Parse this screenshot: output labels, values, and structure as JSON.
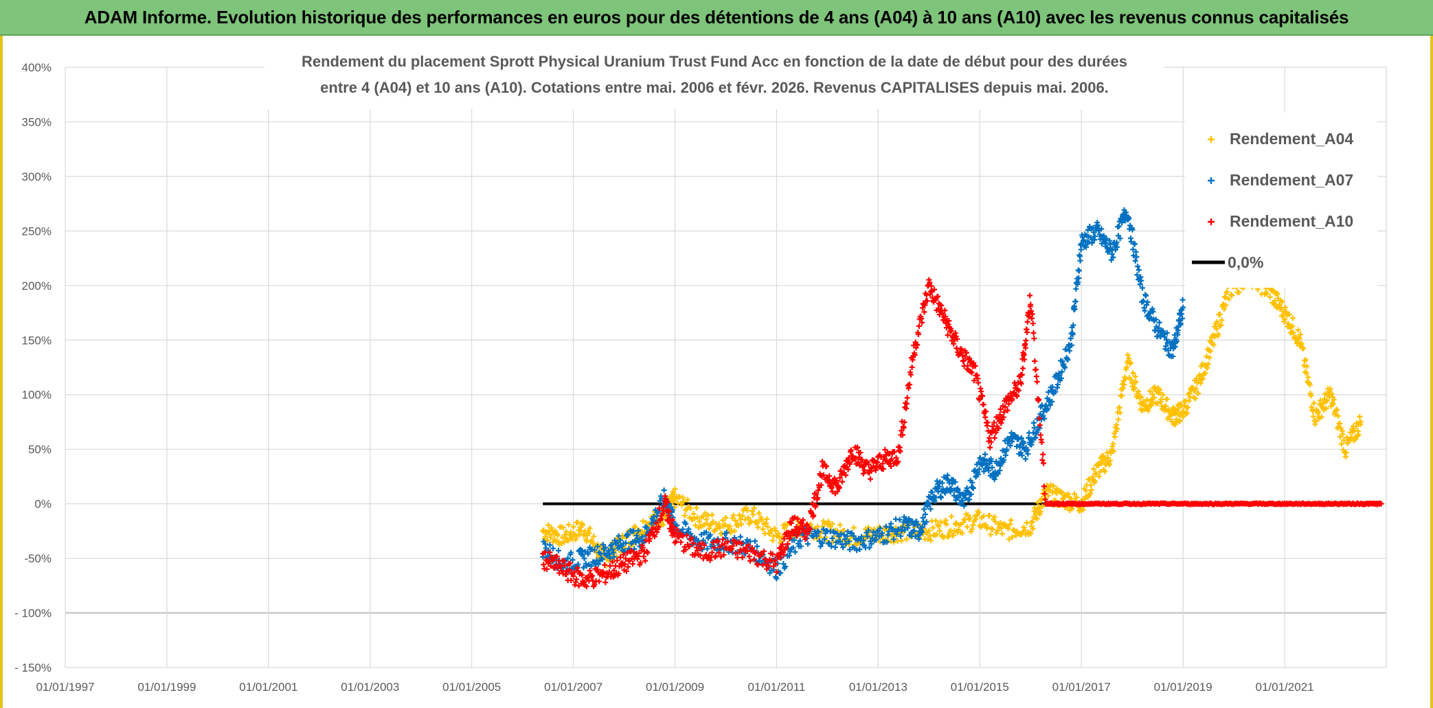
{
  "banner": {
    "title": "ADAM Informe. Evolution historique des performances en euros pour des détentions de 4 ans (A04) à 10 ans (A10) avec les revenus connus capitalisés"
  },
  "colors": {
    "banner_bg": "#7ec47a",
    "a04": "#ffc000",
    "a07": "#0070c0",
    "a10": "#ff0000",
    "zero_line": "#000000"
  },
  "chart_data": {
    "type": "scatter",
    "title_lines": [
      "Rendement du placement Sprott Physical Uranium Trust Fund Acc en fonction de la date de début pour des durées",
      "entre 4 (A04) et 10 ans (A10). Cotations entre mai. 2006 et févr. 2026. Revenus CAPITALISES depuis mai. 2006."
    ],
    "x_tick_labels": [
      "01/01/1997",
      "01/01/1999",
      "01/01/2001",
      "01/01/2003",
      "01/01/2005",
      "01/01/2007",
      "01/01/2009",
      "01/01/2011",
      "01/01/2013",
      "01/01/2015",
      "01/01/2017",
      "01/01/2019",
      "01/01/2021"
    ],
    "y_tick_labels": [
      "400%",
      "350%",
      "300%",
      "250%",
      "200%",
      "150%",
      "100%",
      "50%",
      "0%",
      "-50%",
      "- 100%",
      "- 150%"
    ],
    "xlim": [
      1997.0,
      2023.0
    ],
    "ylim": [
      -150,
      400
    ],
    "grid": true,
    "legend_position": "top-right",
    "series": [
      {
        "name": "Rendement_A04",
        "color": "#ffc000",
        "marker": "+",
        "x": [
          2006.4,
          2006.8,
          2007.2,
          2007.6,
          2008.0,
          2008.4,
          2008.8,
          2009.0,
          2009.5,
          2010.0,
          2010.5,
          2011.0,
          2011.5,
          2012.0,
          2012.5,
          2013.0,
          2013.5,
          2014.0,
          2014.5,
          2015.0,
          2015.5,
          2016.0,
          2016.3,
          2016.6,
          2017.0,
          2017.3,
          2017.6,
          2017.9,
          2018.2,
          2018.5,
          2018.8,
          2019.0,
          2019.3,
          2019.6,
          2019.9,
          2020.3,
          2020.7,
          2021.0,
          2021.3,
          2021.6,
          2021.9,
          2022.2,
          2022.5
        ],
        "y": [
          -25,
          -30,
          -22,
          -50,
          -35,
          -20,
          -10,
          5,
          -15,
          -20,
          -10,
          -30,
          -20,
          -25,
          -30,
          -28,
          -25,
          -25,
          -20,
          -15,
          -25,
          -20,
          10,
          5,
          0,
          30,
          45,
          130,
          90,
          100,
          80,
          85,
          110,
          150,
          195,
          210,
          195,
          175,
          150,
          80,
          100,
          50,
          75
        ]
      },
      {
        "name": "Rendement_A07",
        "color": "#0070c0",
        "marker": "+",
        "x": [
          2006.4,
          2006.8,
          2007.2,
          2007.6,
          2008.0,
          2008.4,
          2008.8,
          2009.0,
          2009.5,
          2010.0,
          2010.5,
          2011.0,
          2011.5,
          2012.0,
          2012.5,
          2013.0,
          2013.5,
          2013.8,
          2014.1,
          2014.4,
          2014.7,
          2015.0,
          2015.3,
          2015.6,
          2015.9,
          2016.2,
          2016.5,
          2016.8,
          2017.0,
          2017.3,
          2017.6,
          2017.9,
          2018.2,
          2018.5,
          2018.8,
          2019.0
        ],
        "y": [
          -40,
          -55,
          -50,
          -45,
          -35,
          -30,
          5,
          -20,
          -35,
          -35,
          -40,
          -60,
          -30,
          -30,
          -35,
          -30,
          -20,
          -25,
          10,
          20,
          0,
          40,
          30,
          60,
          50,
          80,
          110,
          150,
          240,
          250,
          230,
          270,
          190,
          160,
          140,
          180
        ]
      },
      {
        "name": "Rendement_A10",
        "color": "#ff0000",
        "marker": "+",
        "x": [
          2006.4,
          2006.8,
          2007.2,
          2007.6,
          2008.0,
          2008.4,
          2008.8,
          2009.0,
          2009.5,
          2010.0,
          2010.5,
          2011.0,
          2011.3,
          2011.6,
          2011.9,
          2012.2,
          2012.5,
          2012.8,
          2013.1,
          2013.4,
          2013.7,
          2014.0,
          2014.3,
          2014.6,
          2014.9,
          2015.2,
          2015.5,
          2015.8,
          2016.0,
          2016.3,
          2016.6,
          2017.0,
          2017.5,
          2018.0,
          2018.5,
          2019.0,
          2019.5,
          2020.0,
          2020.5,
          2021.0,
          2021.5,
          2022.0,
          2022.5,
          2022.9
        ],
        "y": [
          -50,
          -60,
          -70,
          -65,
          -55,
          -45,
          0,
          -30,
          -45,
          -40,
          -45,
          -55,
          -20,
          -25,
          30,
          15,
          50,
          30,
          40,
          45,
          140,
          200,
          170,
          140,
          120,
          60,
          90,
          110,
          190,
          0,
          0,
          0,
          0,
          0,
          0,
          0,
          0,
          0,
          0,
          0,
          0,
          0,
          0,
          0
        ]
      }
    ],
    "reference_line": {
      "name": "0,0%",
      "y": 0,
      "x_range": [
        2006.4,
        2022.9
      ]
    }
  }
}
